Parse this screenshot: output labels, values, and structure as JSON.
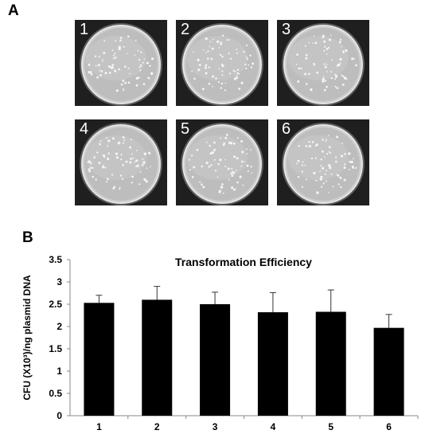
{
  "panel_a": {
    "label": "A",
    "plates": [
      {
        "number": "1"
      },
      {
        "number": "2"
      },
      {
        "number": "3"
      },
      {
        "number": "4"
      },
      {
        "number": "5"
      },
      {
        "number": "6"
      }
    ]
  },
  "panel_b": {
    "label": "B"
  },
  "chart_data": {
    "type": "bar",
    "title": "Transformation Efficiency",
    "ylabel": "CFU (X10³)/ng plasmid DNA",
    "xlabel": "",
    "categories": [
      "1",
      "2",
      "3",
      "4",
      "5",
      "6"
    ],
    "values": [
      2.53,
      2.6,
      2.5,
      2.32,
      2.33,
      1.97
    ],
    "errors": [
      0.17,
      0.3,
      0.27,
      0.44,
      0.49,
      0.3
    ],
    "ylim": [
      0,
      3.5
    ],
    "yticks": [
      "0",
      "0.5",
      "1",
      "1.5",
      "2",
      "2.5",
      "3",
      "3.5"
    ],
    "bar_color": "#000000",
    "grid": false
  }
}
